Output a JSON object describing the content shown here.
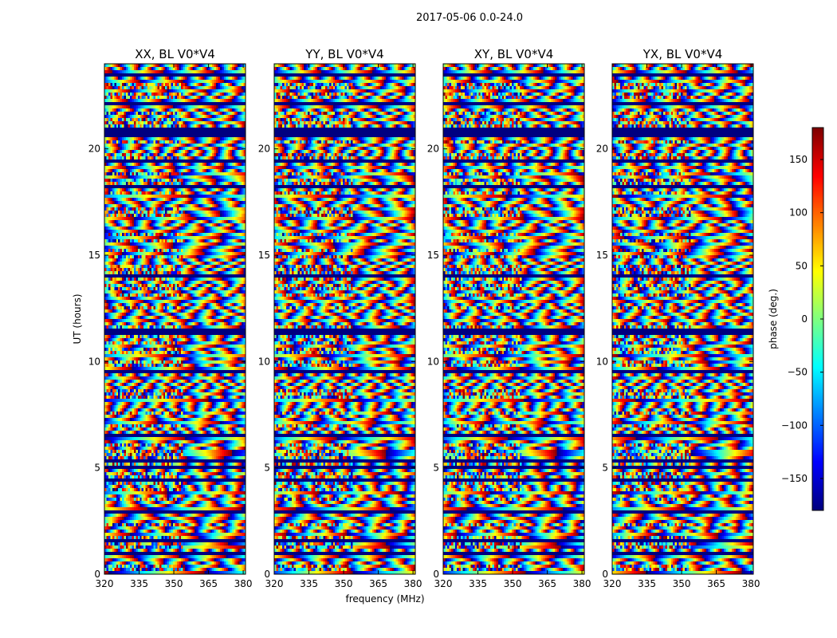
{
  "figure_title": "2017-05-06 0.0-24.0",
  "colors": {
    "cmap": "jet",
    "frame": "#000000",
    "background": "#ffffff"
  },
  "chart_data": {
    "type": "heatmap",
    "title": "2017-05-06 0.0-24.0",
    "xlabel": "frequency (MHz)",
    "ylabel": "UT (hours)",
    "xlim": [
      320,
      381
    ],
    "ylim": [
      0,
      24
    ],
    "x_ticks": [
      320,
      335,
      350,
      365,
      380
    ],
    "y_ticks": [
      0,
      5,
      10,
      15,
      20
    ],
    "colorbar": {
      "label": "phase (deg.)",
      "vmin": -180,
      "vmax": 180,
      "ticks": [
        -150,
        -100,
        -50,
        0,
        50,
        100,
        150
      ],
      "tick_labels": [
        "−150",
        "−100",
        "−50",
        "0",
        "50",
        "100",
        "150"
      ]
    },
    "panels": [
      {
        "title": "XX, BL V0*V4",
        "pol": "XX"
      },
      {
        "title": "YY, BL V0*V4",
        "pol": "YY"
      },
      {
        "title": "XY, BL V0*V4",
        "pol": "XY"
      },
      {
        "title": "YX, BL V0*V4",
        "pol": "YX"
      }
    ],
    "flagged_ut_bands": [
      [
        0.95,
        1.05
      ],
      [
        1.55,
        1.65
      ],
      [
        2.85,
        2.95
      ],
      [
        4.35,
        4.5
      ],
      [
        4.95,
        5.05
      ],
      [
        5.3,
        5.4
      ],
      [
        6.5,
        6.6
      ],
      [
        9.45,
        9.55
      ],
      [
        10.3,
        10.4
      ],
      [
        11.3,
        11.5
      ],
      [
        13.95,
        14.05
      ],
      [
        15.4,
        15.5
      ],
      [
        18.15,
        18.3
      ],
      [
        19.4,
        19.55
      ],
      [
        20.55,
        20.95
      ],
      [
        22.1,
        22.25
      ],
      [
        23.4,
        23.5
      ]
    ]
  }
}
